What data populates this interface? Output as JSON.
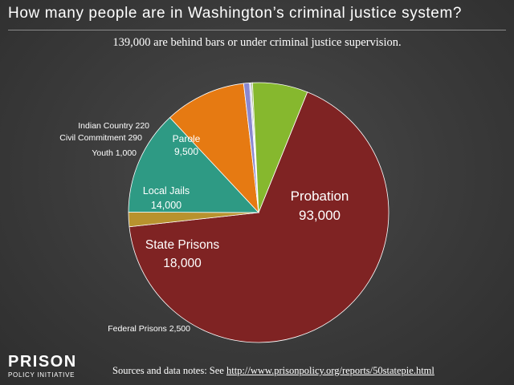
{
  "title": "How many people are in Washington’s criminal justice system?",
  "subtitle": "139,000 are behind bars or under criminal justice supervision.",
  "chart_data": {
    "type": "pie",
    "slices": [
      {
        "name": "Probation",
        "value": 93000,
        "value_label": "93,000",
        "color": "#7f2323"
      },
      {
        "name": "Federal Prisons",
        "value": 2500,
        "value_label": "2,500",
        "color": "#b8922e"
      },
      {
        "name": "State Prisons",
        "value": 18000,
        "value_label": "18,000",
        "color": "#2e9a84"
      },
      {
        "name": "Local Jails",
        "value": 14000,
        "value_label": "14,000",
        "color": "#e67a12"
      },
      {
        "name": "Youth",
        "value": 1000,
        "value_label": "1,000",
        "color": "#8a88d0"
      },
      {
        "name": "Civil Commitment",
        "value": 290,
        "value_label": "290",
        "color": "#cfcfe8"
      },
      {
        "name": "Indian Country",
        "value": 220,
        "value_label": "220",
        "color": "#7a9e3c"
      },
      {
        "name": "Parole",
        "value": 9500,
        "value_label": "9,500",
        "color": "#86b82e"
      }
    ]
  },
  "footer": {
    "logo_main": "PRISON",
    "logo_sub": "POLICY INITIATIVE",
    "source_prefix": "Sources and data notes: See ",
    "source_url": "http://www.prisonpolicy.org/reports/50statepie.html"
  }
}
